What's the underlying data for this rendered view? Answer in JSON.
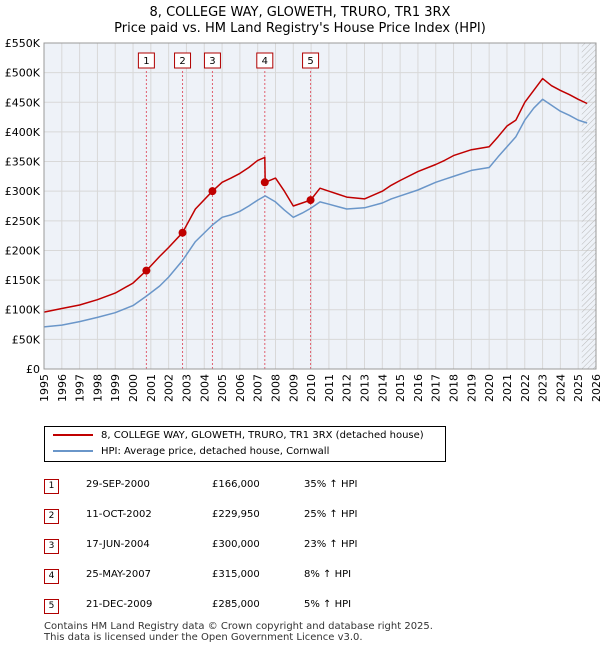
{
  "title": {
    "line1": "8, COLLEGE WAY, GLOWETH, TRURO, TR1 3RX",
    "line2": "Price paid vs. HM Land Registry's House Price Index (HPI)"
  },
  "colors": {
    "price": "#c00000",
    "hpi": "#6a96c9",
    "marker_line": "#e06070",
    "grid": "#d8d8d8",
    "plot_bg": "#eef2f8"
  },
  "legend": {
    "price_label": "8, COLLEGE WAY, GLOWETH, TRURO, TR1 3RX (detached house)",
    "hpi_label": "HPI: Average price, detached house, Cornwall"
  },
  "sales": [
    {
      "num": "1",
      "date": "29-SEP-2000",
      "price": "£166,000",
      "hpi": "35% ↑ HPI"
    },
    {
      "num": "2",
      "date": "11-OCT-2002",
      "price": "£229,950",
      "hpi": "25% ↑ HPI"
    },
    {
      "num": "3",
      "date": "17-JUN-2004",
      "price": "£300,000",
      "hpi": "23% ↑ HPI"
    },
    {
      "num": "4",
      "date": "25-MAY-2007",
      "price": "£315,000",
      "hpi": "8% ↑ HPI"
    },
    {
      "num": "5",
      "date": "21-DEC-2009",
      "price": "£285,000",
      "hpi": "5% ↑ HPI"
    }
  ],
  "footer": {
    "line1": "Contains HM Land Registry data © Crown copyright and database right 2025.",
    "line2": "This data is licensed under the Open Government Licence v3.0."
  },
  "chart_data": {
    "type": "line",
    "title": "8, COLLEGE WAY, GLOWETH, TRURO, TR1 3RX — Price paid vs. HM Land Registry's House Price Index (HPI)",
    "xlabel": "",
    "ylabel": "",
    "xlim": [
      1995,
      2026
    ],
    "ylim": [
      0,
      550000
    ],
    "x_ticks": [
      1995,
      1996,
      1997,
      1998,
      1999,
      2000,
      2001,
      2002,
      2003,
      2004,
      2005,
      2006,
      2007,
      2008,
      2009,
      2010,
      2011,
      2012,
      2013,
      2014,
      2015,
      2016,
      2017,
      2018,
      2019,
      2020,
      2021,
      2022,
      2023,
      2024,
      2025,
      2026
    ],
    "y_ticks": [
      0,
      50000,
      100000,
      150000,
      200000,
      250000,
      300000,
      350000,
      400000,
      450000,
      500000,
      550000
    ],
    "y_tick_labels": [
      "£0",
      "£50K",
      "£100K",
      "£150K",
      "£200K",
      "£250K",
      "£300K",
      "£350K",
      "£400K",
      "£450K",
      "£500K",
      "£550K"
    ],
    "forecast_start": 2025.2,
    "series": [
      {
        "name": "8, COLLEGE WAY, GLOWETH, TRURO, TR1 3RX (detached house)",
        "x": [
          1995.0,
          1996.0,
          1997.0,
          1998.0,
          1999.0,
          2000.0,
          2000.75,
          2001.5,
          2002.0,
          2002.78,
          2003.5,
          2004.46,
          2005.0,
          2005.5,
          2006.0,
          2006.5,
          2007.0,
          2007.4,
          2007.42,
          2008.0,
          2008.5,
          2009.0,
          2009.5,
          2009.97,
          2010.5,
          2011.0,
          2011.5,
          2012.0,
          2013.0,
          2014.0,
          2014.5,
          2015.0,
          2016.0,
          2017.0,
          2017.5,
          2018.0,
          2019.0,
          2020.0,
          2020.5,
          2021.0,
          2021.5,
          2022.0,
          2022.5,
          2023.0,
          2023.5,
          2024.0,
          2024.5,
          2025.0,
          2025.5
        ],
        "values": [
          96000,
          102000,
          108000,
          117000,
          128000,
          145000,
          166000,
          190000,
          205000,
          229950,
          270000,
          300000,
          315000,
          322000,
          330000,
          340000,
          352000,
          357000,
          315000,
          322000,
          300000,
          275000,
          280000,
          285000,
          305000,
          300000,
          295000,
          290000,
          287000,
          300000,
          310000,
          318000,
          333000,
          345000,
          352000,
          360000,
          370000,
          375000,
          392000,
          410000,
          420000,
          450000,
          470000,
          490000,
          478000,
          470000,
          463000,
          455000,
          448000
        ]
      },
      {
        "name": "HPI: Average price, detached house, Cornwall",
        "x": [
          1995.0,
          1996.0,
          1997.0,
          1998.0,
          1999.0,
          2000.0,
          2000.75,
          2001.5,
          2002.0,
          2002.78,
          2003.5,
          2004.46,
          2005.0,
          2005.5,
          2006.0,
          2006.5,
          2007.0,
          2007.42,
          2008.0,
          2008.5,
          2009.0,
          2009.5,
          2009.97,
          2010.5,
          2011.0,
          2011.5,
          2012.0,
          2013.0,
          2014.0,
          2014.5,
          2015.0,
          2016.0,
          2017.0,
          2017.5,
          2018.0,
          2019.0,
          2020.0,
          2020.5,
          2021.0,
          2021.5,
          2022.0,
          2022.5,
          2023.0,
          2023.5,
          2024.0,
          2024.5,
          2025.0,
          2025.5
        ],
        "values": [
          71000,
          74000,
          80000,
          87000,
          95000,
          107000,
          123000,
          140000,
          155000,
          183000,
          215000,
          243000,
          256000,
          260000,
          266000,
          275000,
          285000,
          292000,
          282000,
          268000,
          256000,
          263000,
          271000,
          282000,
          278000,
          274000,
          270000,
          272000,
          280000,
          287000,
          292000,
          302000,
          315000,
          320000,
          325000,
          335000,
          340000,
          358000,
          375000,
          392000,
          420000,
          440000,
          455000,
          445000,
          435000,
          428000,
          420000,
          415000
        ]
      }
    ],
    "sales": [
      {
        "label": "1",
        "x": 2000.75,
        "value": 166000
      },
      {
        "label": "2",
        "x": 2002.78,
        "value": 229950
      },
      {
        "label": "3",
        "x": 2004.46,
        "value": 300000
      },
      {
        "label": "4",
        "x": 2007.4,
        "value": 315000
      },
      {
        "label": "5",
        "x": 2009.97,
        "value": 285000
      }
    ]
  }
}
